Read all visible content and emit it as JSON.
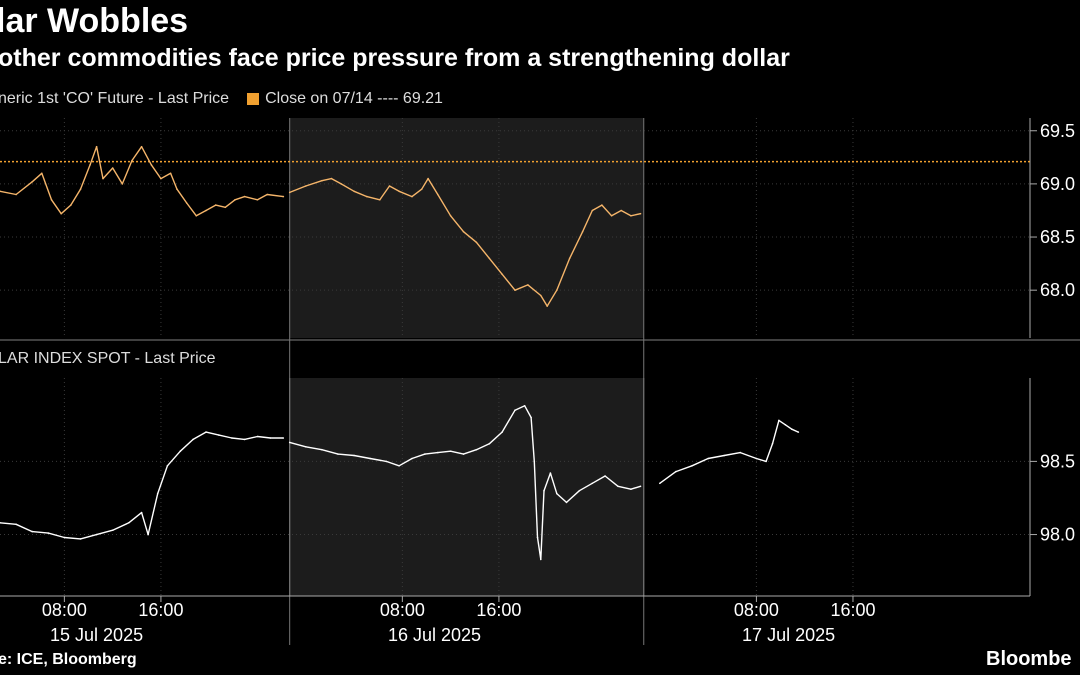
{
  "header": {
    "title": "lar Wobbles",
    "subtitle": "other commodities face price pressure from a strengthening dollar"
  },
  "footer": {
    "source": "e: ICE, Bloomberg",
    "brand": "Bloombe"
  },
  "colors": {
    "background": "#000000",
    "oil_line": "#f5b56a",
    "reference_line": "#f0a030",
    "dollar_line": "#ffffff",
    "shade": "#1c1c1c",
    "grid": "#3a3a3a"
  },
  "chart_data": [
    {
      "type": "line",
      "legend": [
        {
          "label": "neric 1st 'CO' Future - Last Price"
        },
        {
          "label": "Close on 07/14 ---- 69.21"
        }
      ],
      "reference_line": {
        "label": "Close on 07/14",
        "value": 69.21
      },
      "y_ticks": [
        {
          "value": 68.0,
          "label": "68.0"
        },
        {
          "value": 68.5,
          "label": "68.5"
        },
        {
          "value": 69.0,
          "label": "69.0"
        },
        {
          "value": 69.5,
          "label": "69.5"
        }
      ],
      "ylim": [
        67.55,
        69.62
      ],
      "grid": true,
      "series": [
        {
          "segments": [
            [
              [
                0,
                68.93
              ],
              [
                0.5,
                68.9
              ],
              [
                1,
                69.02
              ],
              [
                1.3,
                69.1
              ],
              [
                1.6,
                68.85
              ],
              [
                1.9,
                68.72
              ],
              [
                2.2,
                68.8
              ],
              [
                2.5,
                68.95
              ],
              [
                2.8,
                69.18
              ],
              [
                3.0,
                69.35
              ],
              [
                3.2,
                69.05
              ],
              [
                3.5,
                69.15
              ],
              [
                3.8,
                69.0
              ],
              [
                4.1,
                69.22
              ],
              [
                4.4,
                69.35
              ],
              [
                4.7,
                69.18
              ],
              [
                5.0,
                69.05
              ],
              [
                5.3,
                69.1
              ],
              [
                5.5,
                68.95
              ],
              [
                5.8,
                68.82
              ],
              [
                6.1,
                68.7
              ],
              [
                6.4,
                68.75
              ],
              [
                6.7,
                68.8
              ],
              [
                7.0,
                68.78
              ],
              [
                7.3,
                68.85
              ],
              [
                7.6,
                68.88
              ],
              [
                8.0,
                68.85
              ],
              [
                8.3,
                68.9
              ],
              [
                8.8,
                68.88
              ]
            ],
            [
              [
                9.0,
                68.92
              ],
              [
                9.5,
                68.98
              ],
              [
                10.0,
                69.03
              ],
              [
                10.3,
                69.05
              ],
              [
                10.6,
                69.0
              ],
              [
                11.0,
                68.93
              ],
              [
                11.4,
                68.88
              ],
              [
                11.8,
                68.85
              ],
              [
                12.1,
                68.98
              ],
              [
                12.4,
                68.93
              ],
              [
                12.8,
                68.88
              ],
              [
                13.1,
                68.95
              ],
              [
                13.3,
                69.05
              ],
              [
                13.6,
                68.9
              ],
              [
                14.0,
                68.7
              ],
              [
                14.4,
                68.55
              ],
              [
                14.8,
                68.45
              ],
              [
                15.2,
                68.3
              ],
              [
                15.6,
                68.15
              ],
              [
                16.0,
                68.0
              ],
              [
                16.4,
                68.05
              ],
              [
                16.8,
                67.95
              ],
              [
                17.0,
                67.85
              ],
              [
                17.3,
                68.0
              ],
              [
                17.7,
                68.3
              ],
              [
                18.1,
                68.55
              ],
              [
                18.4,
                68.75
              ],
              [
                18.7,
                68.8
              ],
              [
                19.0,
                68.7
              ],
              [
                19.3,
                68.75
              ],
              [
                19.6,
                68.7
              ],
              [
                19.9,
                68.72
              ]
            ]
          ]
        }
      ]
    },
    {
      "type": "line",
      "legend": [
        {
          "label": "LAR INDEX SPOT - Last Price"
        }
      ],
      "y_ticks": [
        {
          "value": 98.0,
          "label": "98.0"
        },
        {
          "value": 98.5,
          "label": "98.5"
        }
      ],
      "ylim": [
        97.58,
        99.07
      ],
      "grid": true,
      "series": [
        {
          "segments": [
            [
              [
                0,
                98.08
              ],
              [
                0.5,
                98.07
              ],
              [
                1.0,
                98.02
              ],
              [
                1.5,
                98.01
              ],
              [
                2.0,
                97.98
              ],
              [
                2.5,
                97.97
              ],
              [
                3.0,
                98.0
              ],
              [
                3.5,
                98.03
              ],
              [
                4.0,
                98.08
              ],
              [
                4.4,
                98.15
              ],
              [
                4.6,
                98.0
              ],
              [
                4.9,
                98.28
              ],
              [
                5.2,
                98.47
              ],
              [
                5.6,
                98.57
              ],
              [
                6.0,
                98.65
              ],
              [
                6.4,
                98.7
              ],
              [
                6.8,
                98.68
              ],
              [
                7.2,
                98.66
              ],
              [
                7.6,
                98.65
              ],
              [
                8.0,
                98.67
              ],
              [
                8.4,
                98.66
              ],
              [
                8.8,
                98.66
              ]
            ],
            [
              [
                9.0,
                98.63
              ],
              [
                9.5,
                98.6
              ],
              [
                10.0,
                98.58
              ],
              [
                10.5,
                98.55
              ],
              [
                11.0,
                98.54
              ],
              [
                11.5,
                98.52
              ],
              [
                12.0,
                98.5
              ],
              [
                12.4,
                98.47
              ],
              [
                12.8,
                98.52
              ],
              [
                13.2,
                98.55
              ],
              [
                13.6,
                98.56
              ],
              [
                14.0,
                98.57
              ],
              [
                14.4,
                98.55
              ],
              [
                14.8,
                98.58
              ],
              [
                15.2,
                98.62
              ],
              [
                15.6,
                98.7
              ],
              [
                16.0,
                98.85
              ],
              [
                16.3,
                98.88
              ],
              [
                16.5,
                98.8
              ],
              [
                16.6,
                98.5
              ],
              [
                16.7,
                97.98
              ],
              [
                16.8,
                97.83
              ],
              [
                16.9,
                98.3
              ],
              [
                17.1,
                98.42
              ],
              [
                17.3,
                98.28
              ],
              [
                17.6,
                98.22
              ],
              [
                18.0,
                98.3
              ],
              [
                18.4,
                98.35
              ],
              [
                18.8,
                98.4
              ],
              [
                19.2,
                98.33
              ],
              [
                19.6,
                98.31
              ],
              [
                19.9,
                98.33
              ]
            ],
            [
              [
                20.5,
                98.35
              ],
              [
                21.0,
                98.43
              ],
              [
                21.5,
                98.47
              ],
              [
                22.0,
                98.52
              ],
              [
                22.5,
                98.54
              ],
              [
                23.0,
                98.56
              ],
              [
                23.5,
                98.52
              ],
              [
                23.8,
                98.5
              ],
              [
                24.0,
                98.62
              ],
              [
                24.2,
                98.78
              ],
              [
                24.4,
                98.75
              ],
              [
                24.6,
                98.72
              ],
              [
                24.8,
                98.7
              ]
            ]
          ]
        }
      ]
    }
  ],
  "x_axis": {
    "ticks": [
      {
        "x": 2,
        "label": "08:00"
      },
      {
        "x": 5,
        "label": "16:00"
      },
      {
        "x": 12.5,
        "label": "08:00"
      },
      {
        "x": 15.5,
        "label": "16:00"
      },
      {
        "x": 23.5,
        "label": "08:00"
      },
      {
        "x": 26.5,
        "label": "16:00"
      }
    ],
    "day_labels": [
      {
        "x": 3,
        "label": "15 Jul 2025"
      },
      {
        "x": 13.5,
        "label": "16 Jul 2025"
      },
      {
        "x": 24.5,
        "label": "17 Jul 2025"
      }
    ],
    "day_boundaries": [
      9,
      20
    ],
    "shaded_range": [
      9,
      20
    ],
    "xlim": [
      0,
      32
    ]
  }
}
